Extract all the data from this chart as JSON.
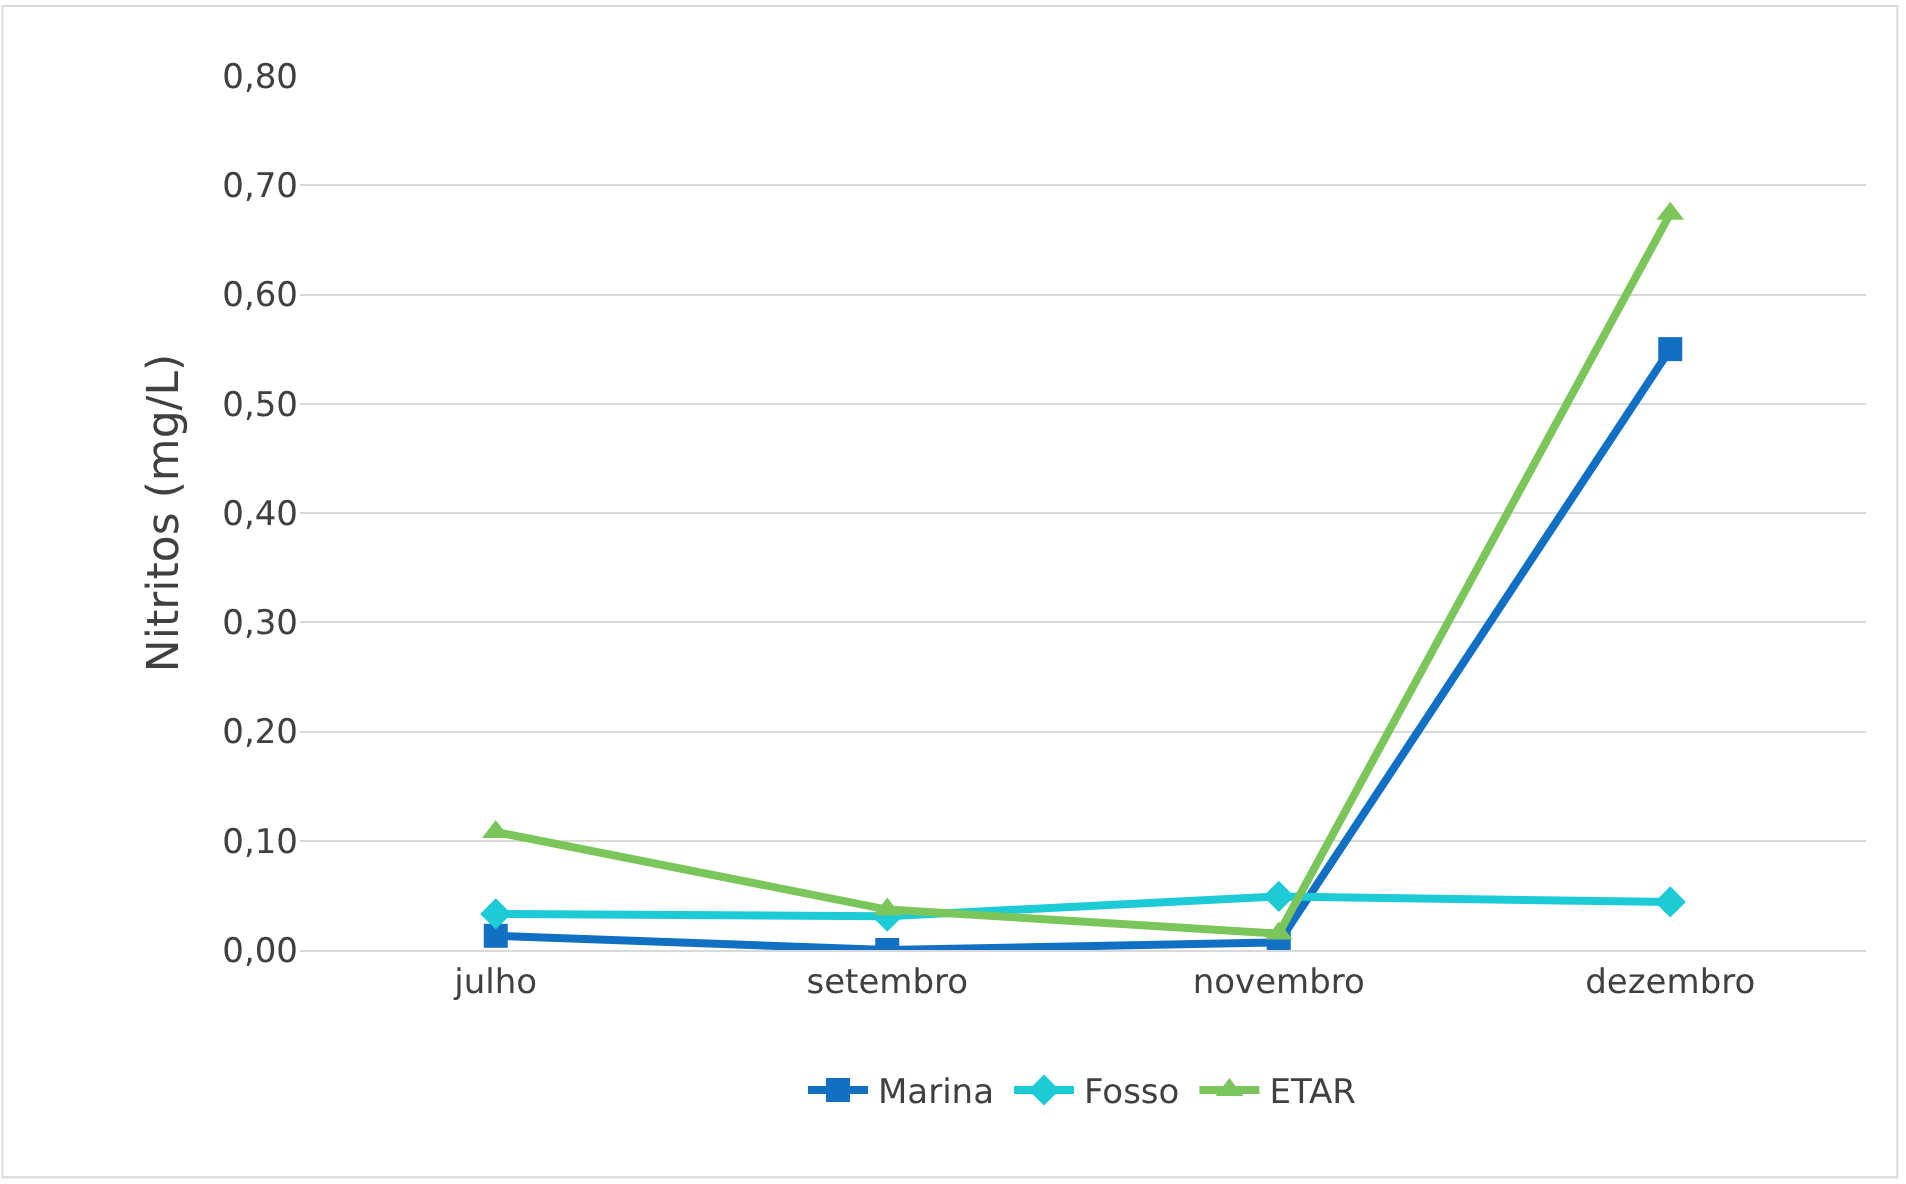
{
  "chart_data": {
    "type": "line",
    "ylabel": "Nitritos (mg/L)",
    "categories": [
      "julho",
      "setembro",
      "novembro",
      "dezembro"
    ],
    "series": [
      {
        "name": "Marina",
        "color": "#1170c4",
        "marker": "square",
        "values": [
          0.013,
          0.0,
          0.007,
          0.55
        ]
      },
      {
        "name": "Fosso",
        "color": "#1dcbd6",
        "marker": "diamond",
        "values": [
          0.033,
          0.031,
          0.049,
          0.044
        ]
      },
      {
        "name": "ETAR",
        "color": "#7ac65a",
        "marker": "triangle",
        "values": [
          0.108,
          0.037,
          0.015,
          0.674
        ]
      }
    ],
    "ylim": [
      0,
      0.8
    ],
    "yticks": [
      {
        "value": 0,
        "label": "0,00"
      },
      {
        "value": 0.1,
        "label": "0,10"
      },
      {
        "value": 0.2,
        "label": "0,20"
      },
      {
        "value": 0.3,
        "label": "0,30"
      },
      {
        "value": 0.4,
        "label": "0,40"
      },
      {
        "value": 0.5,
        "label": "0,50"
      },
      {
        "value": 0.6,
        "label": "0,60"
      },
      {
        "value": 0.7,
        "label": "0,70"
      },
      {
        "value": 0.8,
        "label": "0,80"
      }
    ],
    "grid": "y",
    "legend": "bottom",
    "line_style": "solid"
  }
}
